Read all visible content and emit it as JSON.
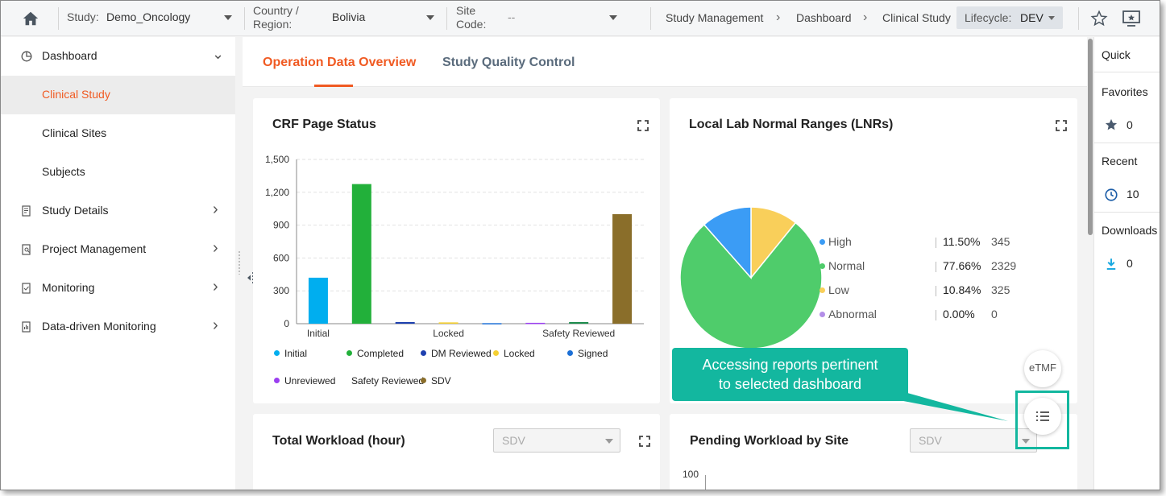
{
  "topbar": {
    "study_label": "Study:",
    "study_value": "Demo_Oncology",
    "country_label_line1": "Country /",
    "country_label_line2": "Region:",
    "country_value": "Bolivia",
    "site_label_line1": "Site",
    "site_label_line2": "Code:",
    "site_value": "--",
    "breadcrumbs": [
      "Study Management",
      "Dashboard",
      "Clinical Study"
    ],
    "lifecycle_label": "Lifecycle:",
    "lifecycle_value": "DEV"
  },
  "sidebar": {
    "items": [
      {
        "label": "Dashboard",
        "icon": "pie-chart-icon",
        "chevron": "⌄"
      },
      {
        "label": "Clinical Study"
      },
      {
        "label": "Clinical Sites"
      },
      {
        "label": "Subjects"
      },
      {
        "label": "Study Details",
        "icon": "document-icon",
        "chevron": "›"
      },
      {
        "label": "Project Management",
        "icon": "document-search-icon",
        "chevron": "›"
      },
      {
        "label": "Monitoring",
        "icon": "document-check-icon",
        "chevron": "›"
      },
      {
        "label": "Data-driven Monitoring",
        "icon": "document-chart-icon",
        "chevron": "›"
      }
    ]
  },
  "tabs": [
    {
      "label": "Operation Data Overview",
      "active": true
    },
    {
      "label": "Study Quality Control",
      "active": false
    }
  ],
  "crf_card": {
    "title": "CRF Page Status"
  },
  "chart_data": [
    {
      "type": "bar",
      "title": "CRF Page Status",
      "categories": [
        "Initial",
        "Completed",
        "DM Reviewed",
        "Locked",
        "Signed",
        "Unreviewed",
        "Safety Reviewed",
        "SDV"
      ],
      "x_tick_labels": [
        "Initial",
        "Locked",
        "Safety Reviewed"
      ],
      "y_tick_labels": [
        "0",
        "300",
        "600",
        "900",
        "1,200",
        "1,500"
      ],
      "values": [
        420,
        1275,
        15,
        12,
        5,
        8,
        15,
        1000
      ],
      "colors": [
        "#00aeef",
        "#22b03a",
        "#1e40af",
        "#f5d033",
        "#1b6fd6",
        "#9b3ff0",
        "#1e8c4e",
        "#8a6e2a"
      ],
      "ylim": [
        0,
        1500
      ],
      "grid": true,
      "legend": [
        "Initial",
        "Completed",
        "DM Reviewed",
        "Locked",
        "Signed",
        "Unreviewed",
        "Safety Reviewed",
        "SDV"
      ],
      "legend_placement": "bottom"
    },
    {
      "type": "pie",
      "title": "Local Lab Normal Ranges (LNRs)",
      "labels": [
        "High",
        "Normal",
        "Low",
        "Abnormal"
      ],
      "percent_labels": [
        "11.50%",
        "77.66%",
        "10.84%",
        "0.00%"
      ],
      "values": [
        345,
        2329,
        325,
        0
      ],
      "colors": [
        "#3b9cf5",
        "#4fcc6b",
        "#f9cf5a",
        "#b38ee8"
      ],
      "legend_placement": "right"
    }
  ],
  "lnr_card": {
    "title": "Local Lab Normal Ranges (LNRs)"
  },
  "workload_card": {
    "title": "Total Workload (hour)",
    "select_value": "SDV"
  },
  "pending_card": {
    "title": "Pending Workload by Site",
    "select_value": "SDV",
    "y_top_label": "100"
  },
  "right_panel": {
    "quick_label": "Quick",
    "favorites_label": "Favorites",
    "favorites_count": "0",
    "recent_label": "Recent",
    "recent_count": "10",
    "downloads_label": "Downloads",
    "downloads_count": "0"
  },
  "floating": {
    "etmf_label": "eTMF",
    "callout_line1": "Accessing reports pertinent",
    "callout_line2": "to selected dashboard"
  },
  "colors": {
    "accent": "#f05a22",
    "callout": "#13b79f"
  }
}
